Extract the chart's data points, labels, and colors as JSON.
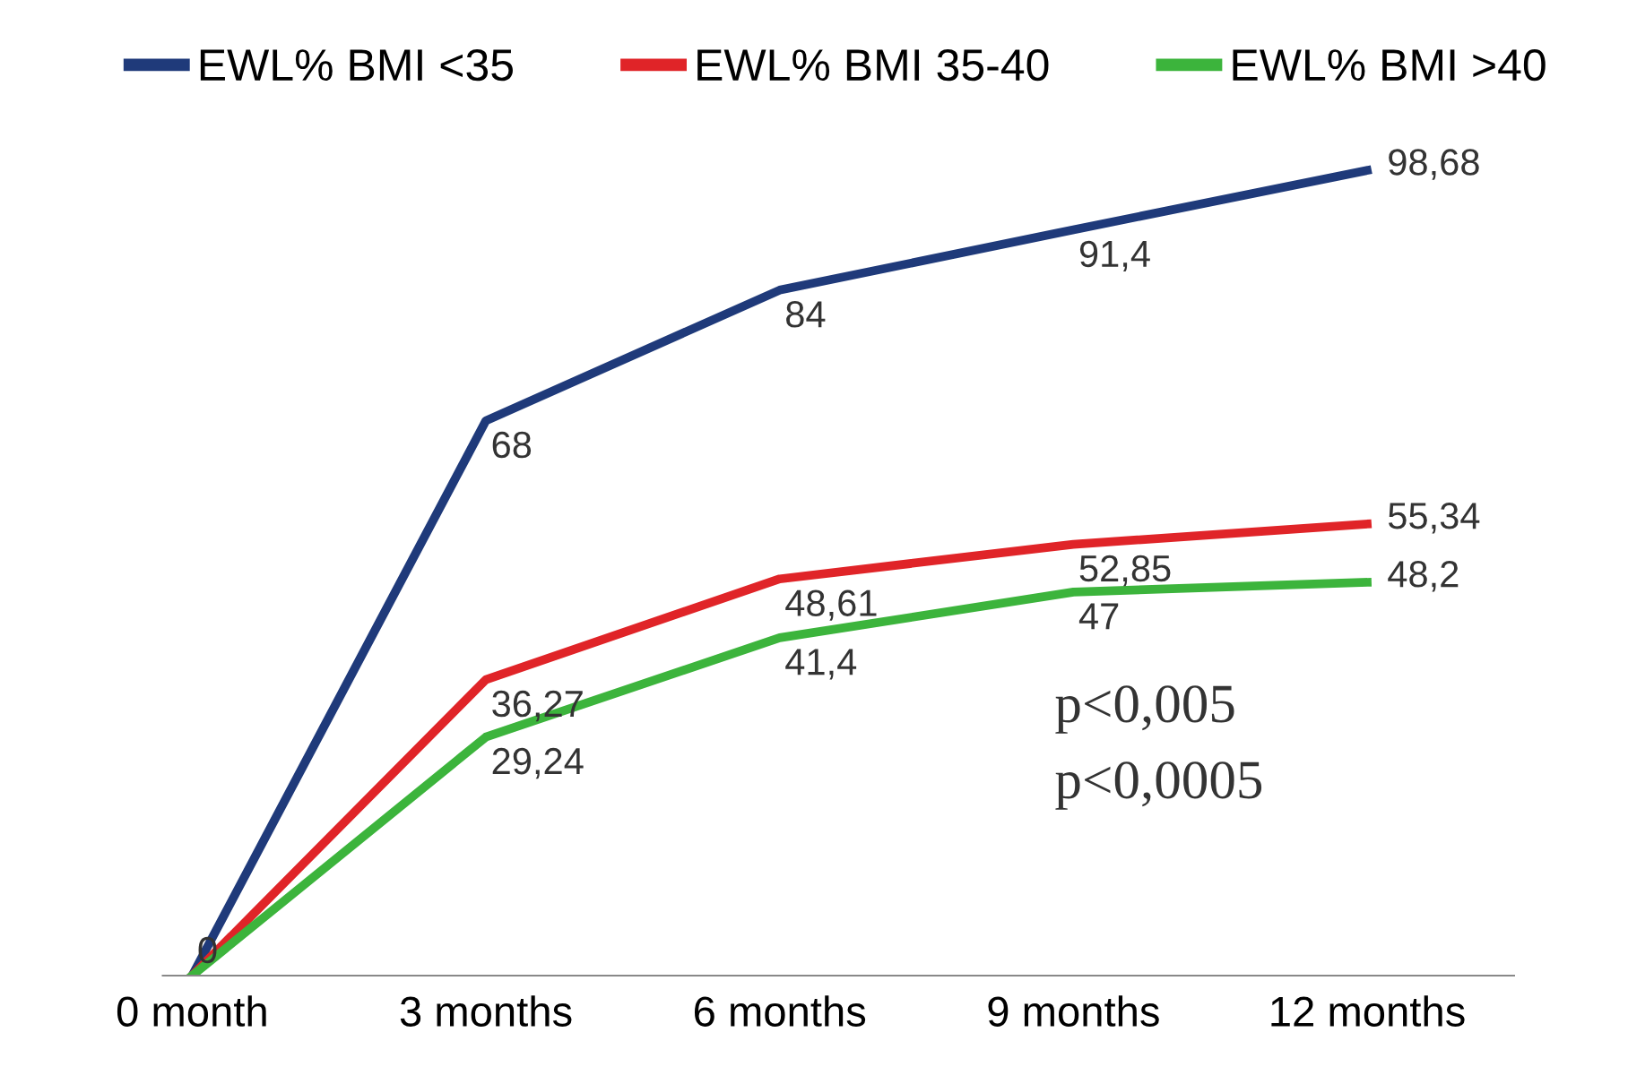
{
  "chart_data": {
    "type": "line",
    "categories": [
      "0 month",
      "3 months",
      "6 months",
      "9 months",
      "12 months"
    ],
    "series": [
      {
        "name": "EWL% BMI <35",
        "color": "#1f3a7a",
        "values": [
          0,
          68,
          84,
          91.4,
          98.68
        ],
        "value_labels": [
          "0",
          "68",
          "84",
          "91,4",
          "98,68"
        ]
      },
      {
        "name": "EWL% BMI 35-40",
        "color": "#e02428",
        "values": [
          0,
          36.27,
          48.61,
          52.85,
          55.34
        ],
        "value_labels": [
          null,
          "36,27",
          "48,61",
          "52,85",
          "55,34"
        ]
      },
      {
        "name": "EWL% BMI >40",
        "color": "#3cb43c",
        "values": [
          0,
          29.24,
          41.4,
          47,
          48.2
        ],
        "value_labels": [
          null,
          "29,24",
          "41,4",
          "47",
          "48,2"
        ]
      }
    ],
    "annotations": [
      "p<0,005",
      "p<0,0005"
    ],
    "legend": "top",
    "grid": false,
    "tick_labels": "x",
    "marker": "none",
    "line_style": "solid"
  }
}
